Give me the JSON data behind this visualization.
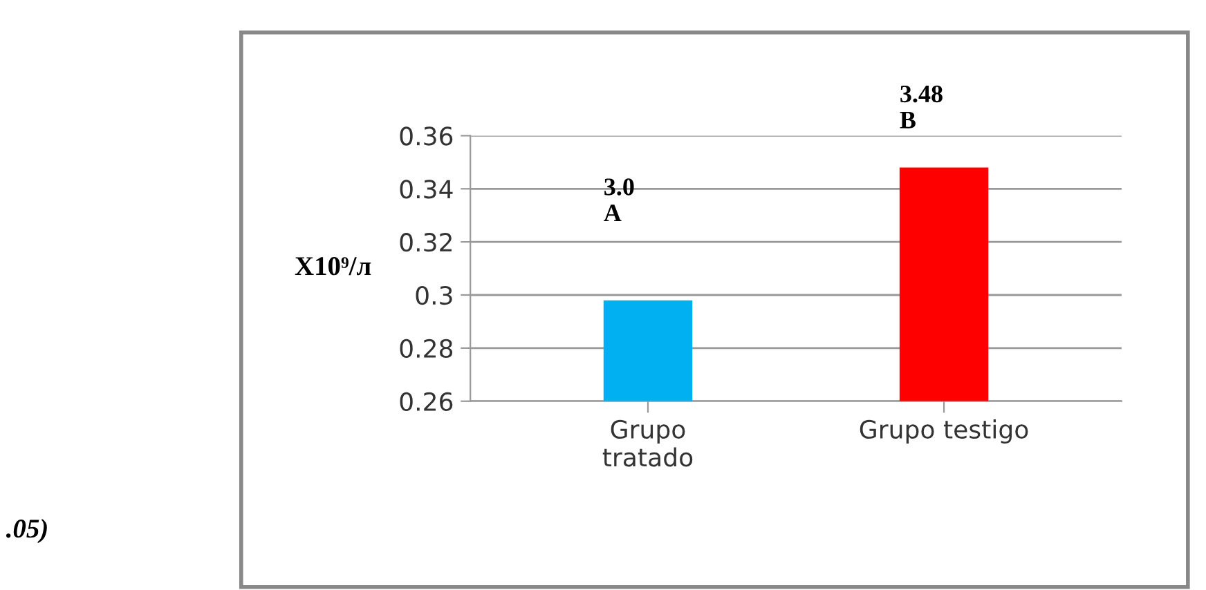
{
  "chart_data": {
    "type": "bar",
    "ylabel": "X10⁹/л",
    "categories": [
      "Grupo\ntratado",
      "Grupo testigo"
    ],
    "values": [
      0.298,
      0.348
    ],
    "colors": [
      "#00b0f0",
      "#ff0000"
    ],
    "ylim": [
      0.26,
      0.36
    ],
    "yticks": [
      0.26,
      0.28,
      {
        "value": 0.3,
        "label": "0.3"
      },
      0.32,
      0.34,
      0.36
    ],
    "grid": "y",
    "annotations": [
      "3.0\nA",
      "3.48\nB",
      ".05)"
    ]
  }
}
